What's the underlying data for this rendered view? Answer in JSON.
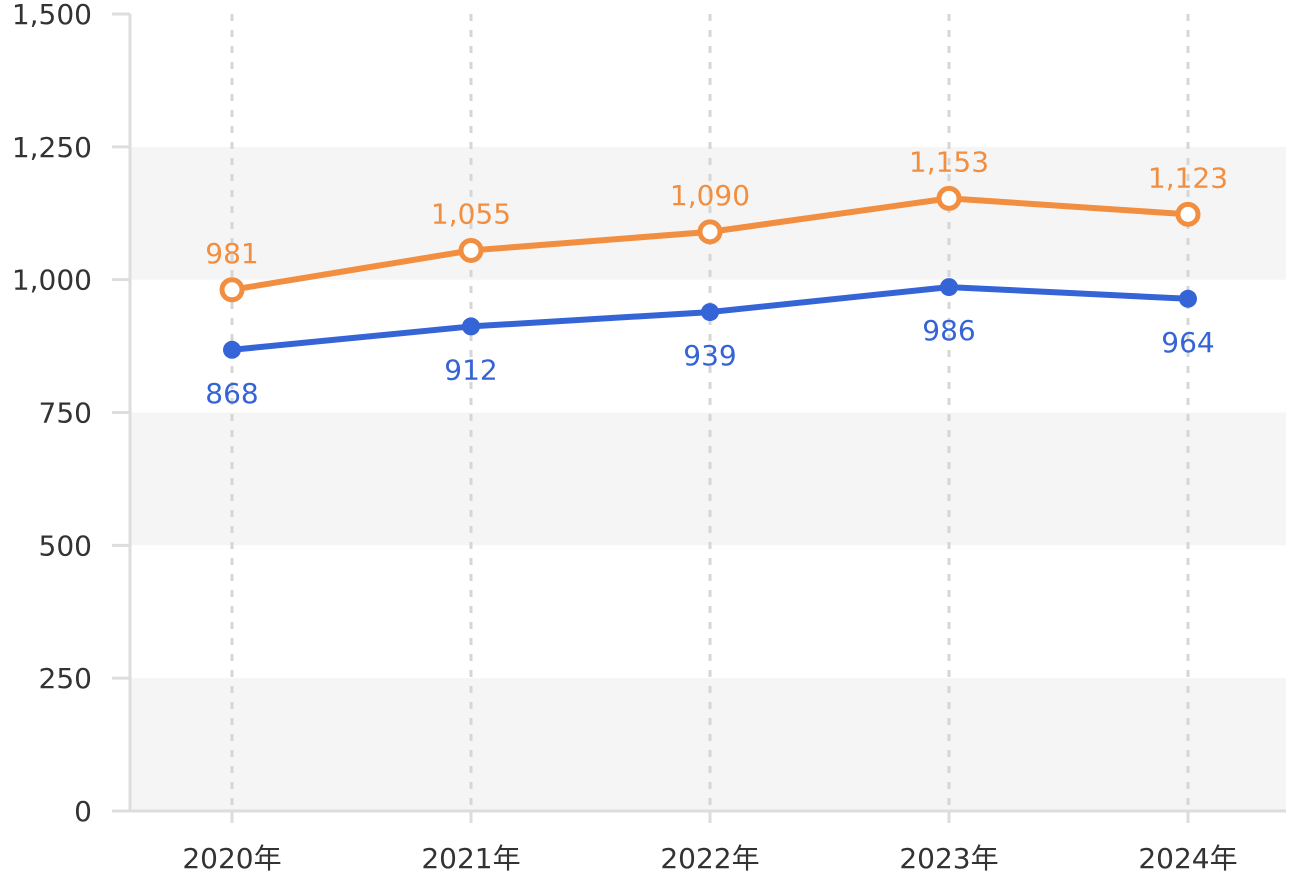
{
  "chart_data": {
    "type": "line",
    "categories": [
      "2020年",
      "2021年",
      "2022年",
      "2023年",
      "2024年"
    ],
    "series": [
      {
        "values": [
          981,
          1055,
          1090,
          1153,
          1123
        ],
        "labels": [
          "981",
          "1,055",
          "1,090",
          "1,153",
          "1,123"
        ],
        "color": "#f28e3f",
        "marker": "hollow-circle",
        "label_position": "above"
      },
      {
        "values": [
          868,
          912,
          939,
          986,
          964
        ],
        "labels": [
          "868",
          "912",
          "939",
          "986",
          "964"
        ],
        "color": "#3464d6",
        "marker": "filled-circle",
        "label_position": "below"
      }
    ],
    "y_ticks": [
      0,
      250,
      500,
      750,
      1000,
      1250,
      1500
    ],
    "y_tick_labels": [
      "0",
      "250",
      "500",
      "750",
      "1,000",
      "1,250",
      "1,500"
    ],
    "ylim": [
      0,
      1500
    ],
    "title": "",
    "xlabel": "",
    "ylabel": "",
    "grid": "alternating horizontal bands, dashed vertical lines at categories",
    "band_color": "#f5f5f5",
    "axis_color": "#dddddd",
    "legend": "none"
  }
}
